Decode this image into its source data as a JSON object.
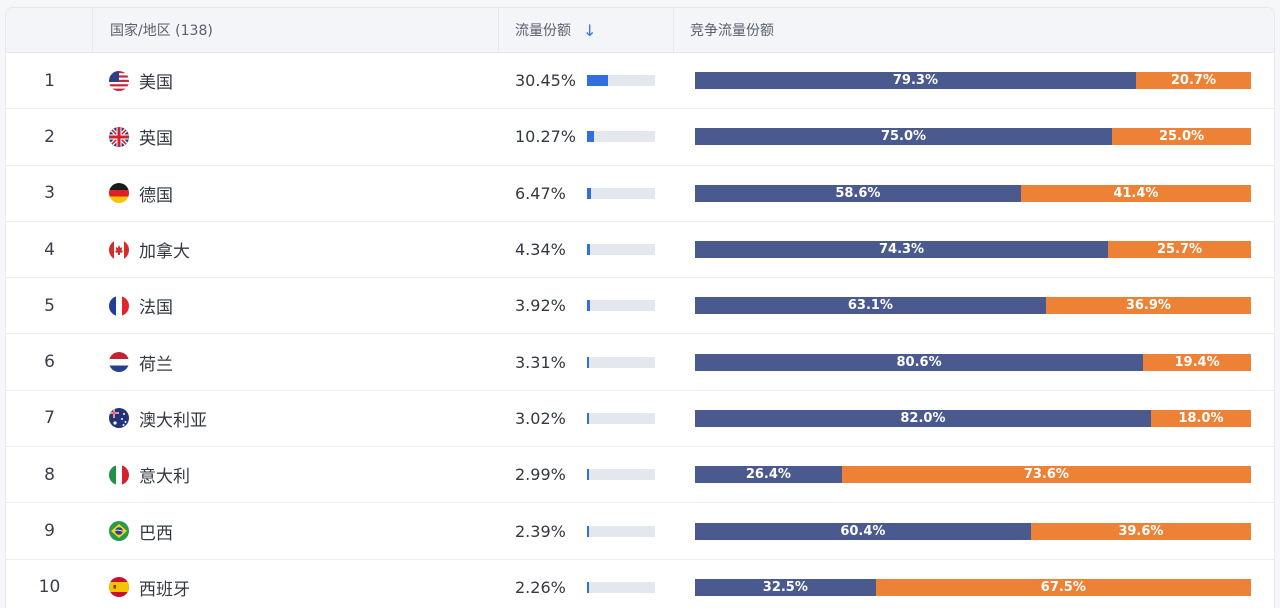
{
  "header": {
    "country_label": "国家/地区 (138)",
    "share_label": "流量份额",
    "comp_label": "竞争流量份额"
  },
  "colors": {
    "share_fill": "#2f6fe0",
    "comp_a": "#4a5a8f",
    "comp_b": "#ed8236"
  },
  "rows": [
    {
      "rank": "1",
      "flag": "us-flag-icon",
      "country": "美国",
      "share": "30.45%",
      "share_value": 30.45,
      "a": "79.3%",
      "a_value": 79.3,
      "b": "20.7%",
      "b_value": 20.7
    },
    {
      "rank": "2",
      "flag": "uk-flag-icon",
      "country": "英国",
      "share": "10.27%",
      "share_value": 10.27,
      "a": "75.0%",
      "a_value": 75.0,
      "b": "25.0%",
      "b_value": 25.0
    },
    {
      "rank": "3",
      "flag": "germany-flag-icon",
      "country": "德国",
      "share": "6.47%",
      "share_value": 6.47,
      "a": "58.6%",
      "a_value": 58.6,
      "b": "41.4%",
      "b_value": 41.4
    },
    {
      "rank": "4",
      "flag": "canada-flag-icon",
      "country": "加拿大",
      "share": "4.34%",
      "share_value": 4.34,
      "a": "74.3%",
      "a_value": 74.3,
      "b": "25.7%",
      "b_value": 25.7
    },
    {
      "rank": "5",
      "flag": "france-flag-icon",
      "country": "法国",
      "share": "3.92%",
      "share_value": 3.92,
      "a": "63.1%",
      "a_value": 63.1,
      "b": "36.9%",
      "b_value": 36.9
    },
    {
      "rank": "6",
      "flag": "netherlands-flag-icon",
      "country": "荷兰",
      "share": "3.31%",
      "share_value": 3.31,
      "a": "80.6%",
      "a_value": 80.6,
      "b": "19.4%",
      "b_value": 19.4
    },
    {
      "rank": "7",
      "flag": "australia-flag-icon",
      "country": "澳大利亚",
      "share": "3.02%",
      "share_value": 3.02,
      "a": "82.0%",
      "a_value": 82.0,
      "b": "18.0%",
      "b_value": 18.0
    },
    {
      "rank": "8",
      "flag": "italy-flag-icon",
      "country": "意大利",
      "share": "2.99%",
      "share_value": 2.99,
      "a": "26.4%",
      "a_value": 26.4,
      "b": "73.6%",
      "b_value": 73.6
    },
    {
      "rank": "9",
      "flag": "brazil-flag-icon",
      "country": "巴西",
      "share": "2.39%",
      "share_value": 2.39,
      "a": "60.4%",
      "a_value": 60.4,
      "b": "39.6%",
      "b_value": 39.6
    },
    {
      "rank": "10",
      "flag": "spain-flag-icon",
      "country": "西班牙",
      "share": "2.26%",
      "share_value": 2.26,
      "a": "32.5%",
      "a_value": 32.5,
      "b": "67.5%",
      "b_value": 67.5
    }
  ]
}
